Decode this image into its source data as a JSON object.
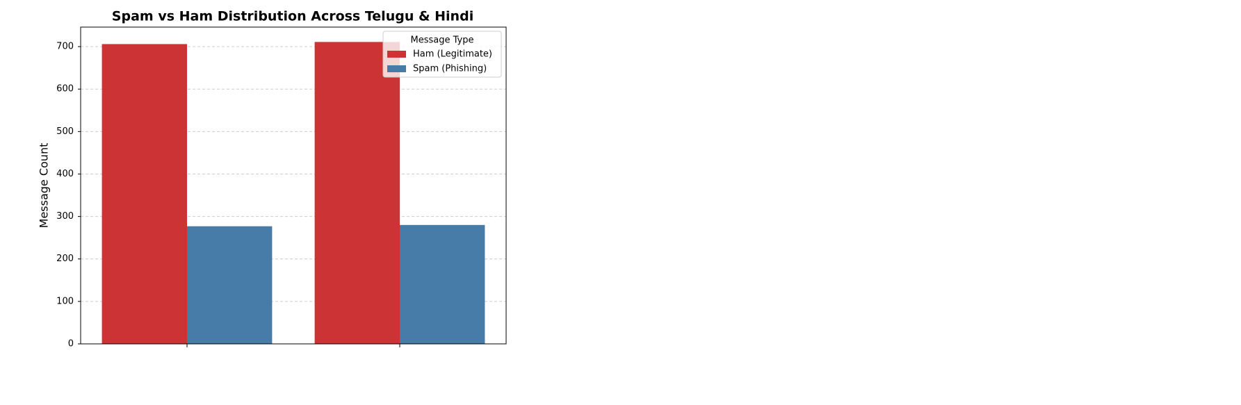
{
  "chart_data": {
    "type": "bar",
    "title": "Spam vs Ham Distribution Across Telugu & Hindi",
    "y_label": "Message Count",
    "categories": [
      null,
      null
    ],
    "series": [
      {
        "name": "Ham (Legitimate)",
        "color": "#cb3335",
        "values": [
          706,
          711
        ]
      },
      {
        "name": "Spam (Phishing)",
        "color": "#477ca8",
        "values": [
          277,
          280
        ]
      }
    ],
    "legend_title": "Message Type",
    "legend": "upper right",
    "ylim": [
      0,
      746
    ],
    "yticks": [
      0,
      100,
      200,
      300,
      400,
      500,
      600,
      700
    ],
    "grid": true
  }
}
